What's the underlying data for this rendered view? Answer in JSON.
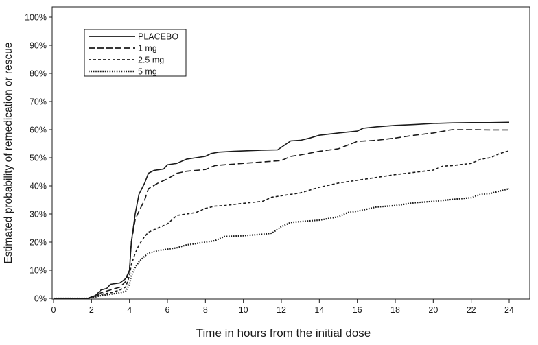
{
  "chart_data": {
    "type": "line",
    "title": "",
    "xlabel": "Time in hours from the initial dose",
    "ylabel": "Estimated probability of remedication or rescue",
    "xlim": [
      0,
      24
    ],
    "ylim": [
      0,
      100
    ],
    "x_ticks": [
      0,
      2,
      4,
      6,
      8,
      10,
      12,
      14,
      16,
      18,
      20,
      22,
      24
    ],
    "y_ticks": [
      0,
      10,
      20,
      30,
      40,
      50,
      60,
      70,
      80,
      90,
      100
    ],
    "x_tick_labels": [
      "0",
      "2",
      "4",
      "6",
      "8",
      "10",
      "12",
      "14",
      "16",
      "18",
      "20",
      "22",
      "24"
    ],
    "y_tick_labels": [
      "0%",
      "10%",
      "20%",
      "30%",
      "40%",
      "50%",
      "60%",
      "70%",
      "80%",
      "90%",
      "100%"
    ],
    "grid": false,
    "legend_position": "top-left",
    "series": [
      {
        "name": "PLACEBO",
        "style": "solid",
        "color": "#1a1a1a",
        "points": [
          [
            0,
            0
          ],
          [
            1.8,
            0
          ],
          [
            2.2,
            1
          ],
          [
            2.5,
            3
          ],
          [
            2.8,
            3.5
          ],
          [
            3,
            5
          ],
          [
            3.5,
            5.5
          ],
          [
            3.8,
            7
          ],
          [
            4,
            10
          ],
          [
            4.1,
            20
          ],
          [
            4.3,
            30
          ],
          [
            4.5,
            37
          ],
          [
            4.8,
            41
          ],
          [
            5,
            44.5
          ],
          [
            5.3,
            45.5
          ],
          [
            5.8,
            46
          ],
          [
            6,
            47.5
          ],
          [
            6.5,
            48
          ],
          [
            7,
            49.5
          ],
          [
            7.5,
            50
          ],
          [
            8,
            50.5
          ],
          [
            8.3,
            51.5
          ],
          [
            8.7,
            52
          ],
          [
            9.5,
            52.3
          ],
          [
            11,
            52.7
          ],
          [
            11.8,
            52.8
          ],
          [
            12.5,
            56
          ],
          [
            13,
            56.2
          ],
          [
            13.5,
            57
          ],
          [
            14,
            58
          ],
          [
            15,
            58.8
          ],
          [
            16,
            59.5
          ],
          [
            16.3,
            60.5
          ],
          [
            17,
            61
          ],
          [
            18,
            61.5
          ],
          [
            19,
            61.8
          ],
          [
            20,
            62.2
          ],
          [
            21,
            62.4
          ],
          [
            22,
            62.5
          ],
          [
            23,
            62.5
          ],
          [
            24,
            62.6
          ]
        ]
      },
      {
        "name": "1 mg",
        "style": "dashed",
        "color": "#1a1a1a",
        "points": [
          [
            0,
            0
          ],
          [
            1.8,
            0
          ],
          [
            2.2,
            1
          ],
          [
            2.5,
            2
          ],
          [
            3,
            3
          ],
          [
            3.5,
            4
          ],
          [
            3.8,
            6
          ],
          [
            4,
            10
          ],
          [
            4.1,
            20
          ],
          [
            4.3,
            28
          ],
          [
            4.5,
            31
          ],
          [
            4.8,
            35
          ],
          [
            5,
            39
          ],
          [
            5.5,
            41
          ],
          [
            6,
            42.5
          ],
          [
            6.5,
            44.5
          ],
          [
            7,
            45.2
          ],
          [
            8,
            45.8
          ],
          [
            8.5,
            47.2
          ],
          [
            9,
            47.5
          ],
          [
            10,
            48
          ],
          [
            11,
            48.5
          ],
          [
            12,
            49
          ],
          [
            12.5,
            50.5
          ],
          [
            13,
            51
          ],
          [
            14,
            52.3
          ],
          [
            15,
            53.2
          ],
          [
            16,
            55.8
          ],
          [
            17,
            56.2
          ],
          [
            18,
            57
          ],
          [
            19,
            58
          ],
          [
            20,
            58.8
          ],
          [
            21,
            60
          ],
          [
            22,
            60
          ],
          [
            23,
            59.9
          ],
          [
            24,
            59.9
          ]
        ]
      },
      {
        "name": "2.5 mg",
        "style": "short-dashed",
        "color": "#1a1a1a",
        "points": [
          [
            0,
            0
          ],
          [
            1.8,
            0
          ],
          [
            2.2,
            0.8
          ],
          [
            2.5,
            1.5
          ],
          [
            3,
            2
          ],
          [
            3.5,
            3
          ],
          [
            3.8,
            4
          ],
          [
            4,
            8
          ],
          [
            4.1,
            12
          ],
          [
            4.3,
            16
          ],
          [
            4.5,
            19
          ],
          [
            4.8,
            22
          ],
          [
            5,
            23.5
          ],
          [
            5.5,
            25
          ],
          [
            6,
            26.5
          ],
          [
            6.5,
            29.5
          ],
          [
            7,
            30
          ],
          [
            7.5,
            30.5
          ],
          [
            8,
            32
          ],
          [
            8.5,
            32.8
          ],
          [
            9,
            33
          ],
          [
            10,
            33.8
          ],
          [
            11,
            34.5
          ],
          [
            11.5,
            36
          ],
          [
            12,
            36.5
          ],
          [
            13,
            37.5
          ],
          [
            14,
            39.5
          ],
          [
            15,
            41
          ],
          [
            16,
            42
          ],
          [
            17,
            43
          ],
          [
            18,
            44
          ],
          [
            19,
            44.8
          ],
          [
            20,
            45.6
          ],
          [
            20.5,
            47
          ],
          [
            21,
            47.2
          ],
          [
            22,
            48
          ],
          [
            22.5,
            49.5
          ],
          [
            23,
            50
          ],
          [
            23.5,
            51.5
          ],
          [
            24,
            52.5
          ]
        ]
      },
      {
        "name": "5 mg",
        "style": "dotted",
        "color": "#1a1a1a",
        "points": [
          [
            0,
            0
          ],
          [
            1.8,
            0
          ],
          [
            2.2,
            0.5
          ],
          [
            2.5,
            1
          ],
          [
            3,
            1.5
          ],
          [
            3.5,
            2
          ],
          [
            3.8,
            2.5
          ],
          [
            4,
            5
          ],
          [
            4.1,
            8
          ],
          [
            4.3,
            11
          ],
          [
            4.5,
            13
          ],
          [
            4.8,
            15
          ],
          [
            5,
            16
          ],
          [
            5.5,
            17
          ],
          [
            6,
            17.5
          ],
          [
            6.5,
            18
          ],
          [
            7,
            19
          ],
          [
            7.5,
            19.5
          ],
          [
            8,
            20
          ],
          [
            8.5,
            20.5
          ],
          [
            9,
            22
          ],
          [
            10,
            22.3
          ],
          [
            11,
            22.8
          ],
          [
            11.5,
            23.2
          ],
          [
            12,
            25.5
          ],
          [
            12.5,
            27
          ],
          [
            13,
            27.3
          ],
          [
            14,
            27.8
          ],
          [
            15,
            29
          ],
          [
            15.5,
            30.5
          ],
          [
            16,
            31
          ],
          [
            17,
            32.5
          ],
          [
            18,
            33
          ],
          [
            19,
            34
          ],
          [
            20,
            34.5
          ],
          [
            21,
            35.2
          ],
          [
            22,
            35.8
          ],
          [
            22.5,
            37
          ],
          [
            23,
            37.3
          ],
          [
            24,
            39
          ]
        ]
      }
    ]
  }
}
